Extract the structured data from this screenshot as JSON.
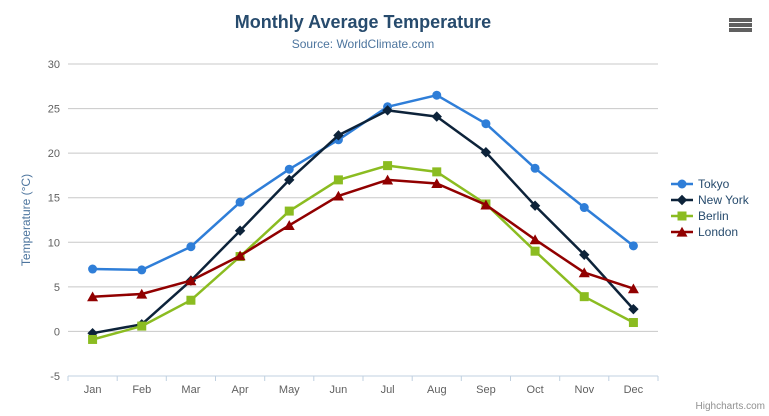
{
  "chart": {
    "menu_icon": "hamburger-menu-icon",
    "credits": "Highcharts.com"
  },
  "chart_data": {
    "type": "line",
    "title": "Monthly Average Temperature",
    "subtitle": "Source: WorldClimate.com",
    "categories": [
      "Jan",
      "Feb",
      "Mar",
      "Apr",
      "May",
      "Jun",
      "Jul",
      "Aug",
      "Sep",
      "Oct",
      "Nov",
      "Dec"
    ],
    "xlabel": "",
    "ylabel": "Temperature (°C)",
    "ylim": [
      -5,
      30
    ],
    "ytick_step": 5,
    "grid": true,
    "legend_position": "right",
    "series": [
      {
        "name": "Tokyo",
        "color": "#2f7ed8",
        "marker": "circle",
        "values": [
          7.0,
          6.9,
          9.5,
          14.5,
          18.2,
          21.5,
          25.2,
          26.5,
          23.3,
          18.3,
          13.9,
          9.6
        ]
      },
      {
        "name": "New York",
        "color": "#0d233a",
        "marker": "diamond",
        "values": [
          -0.2,
          0.8,
          5.7,
          11.3,
          17.0,
          22.0,
          24.8,
          24.1,
          20.1,
          14.1,
          8.6,
          2.5
        ]
      },
      {
        "name": "Berlin",
        "color": "#8bbc21",
        "marker": "square",
        "values": [
          -0.9,
          0.6,
          3.5,
          8.4,
          13.5,
          17.0,
          18.6,
          17.9,
          14.3,
          9.0,
          3.9,
          1.0
        ]
      },
      {
        "name": "London",
        "color": "#910000",
        "marker": "triangle",
        "values": [
          3.9,
          4.2,
          5.7,
          8.5,
          11.9,
          15.2,
          17.0,
          16.6,
          14.2,
          10.3,
          6.6,
          4.8
        ]
      }
    ],
    "style": {
      "title_color": "#274b6d",
      "subtitle_color": "#4d759e",
      "axis_label_color": "#606060",
      "axis_title_color": "#4d759e",
      "grid_color": "#c8c8c8",
      "axis_line_color": "#c0d0e0",
      "legend_text_color": "#274b6d",
      "credits_color": "#909090"
    }
  }
}
